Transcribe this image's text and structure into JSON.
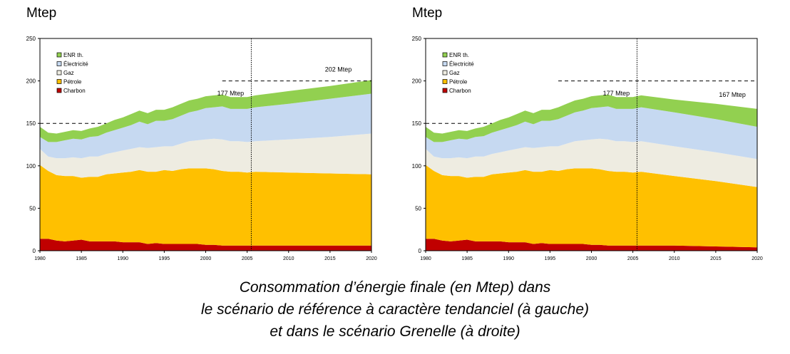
{
  "chart_data": [
    {
      "type": "area",
      "stacked": true,
      "unit_label": "Mtep",
      "x": [
        1980,
        1981,
        1982,
        1983,
        1984,
        1985,
        1986,
        1987,
        1988,
        1989,
        1990,
        1991,
        1992,
        1993,
        1994,
        1995,
        1996,
        1997,
        1998,
        1999,
        2000,
        2001,
        2002,
        2003,
        2004,
        2005,
        2006,
        2010,
        2015,
        2020
      ],
      "xlim": [
        1980,
        2020
      ],
      "ylim": [
        0,
        250
      ],
      "x_ticks": [
        1980,
        1985,
        1990,
        1995,
        2000,
        2005,
        2010,
        2015,
        2020
      ],
      "y_ticks": [
        0,
        50,
        100,
        150,
        200,
        250
      ],
      "series": [
        {
          "name": "Charbon",
          "color": "#c00000",
          "values": [
            14,
            14,
            12,
            11,
            12,
            13,
            11,
            11,
            11,
            11,
            10,
            10,
            10,
            8,
            9,
            8,
            8,
            8,
            8,
            8,
            7,
            7,
            6,
            6,
            6,
            6,
            6,
            6,
            6,
            6
          ]
        },
        {
          "name": "Pétrole",
          "color": "#ffc000",
          "values": [
            87,
            80,
            77,
            77,
            76,
            73,
            76,
            76,
            79,
            80,
            82,
            83,
            85,
            85,
            84,
            87,
            86,
            88,
            89,
            89,
            90,
            89,
            88,
            87,
            87,
            86,
            87,
            86,
            85,
            84
          ]
        },
        {
          "name": "Gaz",
          "color": "#eeece1",
          "values": [
            19,
            17,
            20,
            21,
            22,
            23,
            24,
            24,
            24,
            25,
            26,
            27,
            27,
            28,
            29,
            28,
            29,
            30,
            32,
            33,
            34,
            36,
            37,
            36,
            36,
            36,
            36,
            39,
            43,
            48
          ]
        },
        {
          "name": "Électricité",
          "color": "#c6d9f1",
          "values": [
            14,
            17,
            19,
            21,
            22,
            22,
            23,
            24,
            25,
            26,
            27,
            28,
            30,
            28,
            31,
            30,
            32,
            33,
            34,
            35,
            37,
            37,
            39,
            38,
            38,
            39,
            40,
            42,
            45,
            47
          ]
        },
        {
          "name": "ENR th.",
          "color": "#92d050",
          "values": [
            12,
            11,
            10,
            10,
            10,
            10,
            10,
            11,
            11,
            12,
            12,
            13,
            13,
            13,
            13,
            13,
            14,
            14,
            14,
            14,
            14,
            14,
            14,
            14,
            14,
            14,
            14,
            15,
            15,
            16
          ]
        }
      ],
      "legend_position": "top-left",
      "annotations": [
        {
          "text": "177 Mtep",
          "x": 2003,
          "y": 183
        },
        {
          "text": "202 Mtep",
          "x": 2016,
          "y": 211
        }
      ],
      "reference_lines": [
        {
          "orientation": "horizontal",
          "y": 200,
          "style": "dashed",
          "x_range": [
            2002,
            2020
          ]
        },
        {
          "orientation": "horizontal",
          "y": 150,
          "style": "dashed",
          "x_range": [
            1980,
            1988
          ]
        },
        {
          "orientation": "vertical",
          "x": 2005.5,
          "style": "dotted"
        }
      ]
    },
    {
      "type": "area",
      "stacked": true,
      "unit_label": "Mtep",
      "x": [
        1980,
        1981,
        1982,
        1983,
        1984,
        1985,
        1986,
        1987,
        1988,
        1989,
        1990,
        1991,
        1992,
        1993,
        1994,
        1995,
        1996,
        1997,
        1998,
        1999,
        2000,
        2001,
        2002,
        2003,
        2004,
        2005,
        2006,
        2010,
        2015,
        2020
      ],
      "xlim": [
        1980,
        2020
      ],
      "ylim": [
        0,
        250
      ],
      "x_ticks": [
        1980,
        1985,
        1990,
        1995,
        2000,
        2005,
        2010,
        2015,
        2020
      ],
      "y_ticks": [
        0,
        50,
        100,
        150,
        200,
        250
      ],
      "series": [
        {
          "name": "Charbon",
          "color": "#c00000",
          "values": [
            14,
            14,
            12,
            11,
            12,
            13,
            11,
            11,
            11,
            11,
            10,
            10,
            10,
            8,
            9,
            8,
            8,
            8,
            8,
            8,
            7,
            7,
            6,
            6,
            6,
            6,
            6,
            6,
            5,
            4
          ]
        },
        {
          "name": "Pétrole",
          "color": "#ffc000",
          "values": [
            87,
            80,
            77,
            77,
            76,
            73,
            76,
            76,
            79,
            80,
            82,
            83,
            85,
            85,
            84,
            87,
            86,
            88,
            89,
            89,
            90,
            89,
            88,
            87,
            87,
            86,
            87,
            82,
            77,
            71
          ]
        },
        {
          "name": "Gaz",
          "color": "#eeece1",
          "values": [
            19,
            17,
            20,
            21,
            22,
            23,
            24,
            24,
            24,
            25,
            26,
            27,
            27,
            28,
            29,
            28,
            29,
            30,
            32,
            33,
            34,
            36,
            37,
            36,
            36,
            36,
            36,
            35,
            34,
            33
          ]
        },
        {
          "name": "Électricité",
          "color": "#c6d9f1",
          "values": [
            14,
            17,
            19,
            21,
            22,
            22,
            23,
            24,
            25,
            26,
            27,
            28,
            30,
            28,
            31,
            30,
            32,
            33,
            34,
            35,
            37,
            37,
            39,
            38,
            38,
            39,
            40,
            40,
            39,
            38
          ]
        },
        {
          "name": "ENR th.",
          "color": "#92d050",
          "values": [
            12,
            11,
            10,
            10,
            10,
            10,
            10,
            11,
            11,
            12,
            12,
            13,
            13,
            13,
            13,
            13,
            14,
            14,
            14,
            14,
            14,
            14,
            14,
            14,
            14,
            14,
            14,
            15,
            18,
            21
          ]
        }
      ],
      "legend_position": "top-left",
      "annotations": [
        {
          "text": "177 Mtep",
          "x": 2003,
          "y": 183
        },
        {
          "text": "167 Mtep",
          "x": 2017,
          "y": 181
        }
      ],
      "reference_lines": [
        {
          "orientation": "horizontal",
          "y": 200,
          "style": "dashed",
          "x_range": [
            1996,
            2020
          ]
        },
        {
          "orientation": "horizontal",
          "y": 150,
          "style": "dashed",
          "x_range": [
            1980,
            1988
          ]
        },
        {
          "orientation": "vertical",
          "x": 2005.5,
          "style": "dotted"
        }
      ]
    }
  ],
  "caption": [
    "Consommation d’énergie finale (en Mtep) dans",
    "le scénario de référence à caractère tendanciel (à gauche)",
    "et dans le scénario Grenelle (à droite)"
  ]
}
